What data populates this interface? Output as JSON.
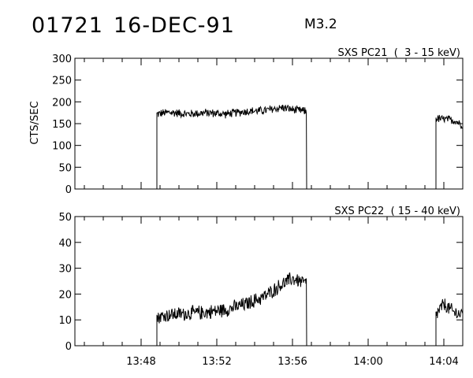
{
  "header": {
    "event_id": "01721",
    "date": "16-DEC-91",
    "flare_class": "M3.2"
  },
  "chart_data": [
    {
      "type": "line",
      "title": "SXS PC21  (  3 - 15 keV)",
      "ylabel": "CTS/SEC",
      "xlabel": "",
      "x_unit": "UT",
      "xlim": [
        "13:44:30",
        "14:05:00"
      ],
      "ylim": [
        0,
        300
      ],
      "yticks": [
        "0",
        "50",
        "100",
        "150",
        "200",
        "250",
        "300"
      ],
      "xticks": [
        "13:48",
        "13:52",
        "13:56",
        "14:00",
        "14:04"
      ],
      "grid": false,
      "series": [
        {
          "segments": [
            {
              "x": [
                "13:48:50",
                "13:49:30",
                "13:50:30",
                "13:51:30",
                "13:52:30",
                "13:53:30",
                "13:54:30",
                "13:55:30",
                "13:56:00",
                "13:56:45"
              ],
              "y": [
                172,
                176,
                172,
                175,
                172,
                178,
                180,
                187,
                182,
                178
              ]
            },
            {
              "x": [
                "14:03:35",
                "14:04:00",
                "14:04:30",
                "14:05:00"
              ],
              "y": [
                162,
                160,
                158,
                148
              ]
            }
          ]
        }
      ]
    },
    {
      "type": "line",
      "title": "SXS PC22  ( 15 - 40 keV)",
      "ylabel": "",
      "xlabel": "",
      "x_unit": "UT",
      "xlim": [
        "13:44:30",
        "14:05:00"
      ],
      "ylim": [
        0,
        50
      ],
      "yticks": [
        "0",
        "10",
        "20",
        "30",
        "40",
        "50"
      ],
      "xticks": [
        "13:48",
        "13:52",
        "13:56",
        "14:00",
        "14:04"
      ],
      "grid": false,
      "series": [
        {
          "segments": [
            {
              "x": [
                "13:48:50",
                "13:49:30",
                "13:50:30",
                "13:51:30",
                "13:52:30",
                "13:53:30",
                "13:54:30",
                "13:55:30",
                "13:56:00",
                "13:56:45"
              ],
              "y": [
                11,
                12,
                12.5,
                13,
                14,
                16,
                19,
                24,
                26,
                24
              ]
            },
            {
              "x": [
                "14:03:35",
                "14:04:00",
                "14:04:30",
                "14:05:00"
              ],
              "y": [
                12,
                16,
                13,
                12
              ]
            }
          ]
        }
      ]
    }
  ]
}
